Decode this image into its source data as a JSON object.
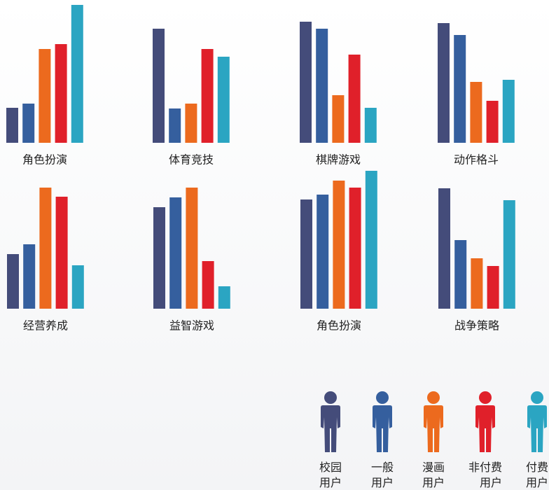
{
  "legend": [
    {
      "name": "校园用户",
      "color": "#444c7a"
    },
    {
      "name": "一般用户",
      "color": "#355f9e"
    },
    {
      "name": "漫画用户",
      "color": "#ec6a1e"
    },
    {
      "name": "非付费用户",
      "color": "#e0202a"
    },
    {
      "name": "付费用户",
      "color": "#2ba5c2"
    }
  ],
  "chart_data": [
    {
      "type": "bar",
      "title": "角色扮演",
      "values": [
        50,
        56,
        134,
        141,
        197
      ]
    },
    {
      "type": "bar",
      "title": "体育竞技",
      "values": [
        163,
        49,
        56,
        134,
        123
      ]
    },
    {
      "type": "bar",
      "title": "棋牌游戏",
      "values": [
        173,
        163,
        68,
        126,
        50
      ]
    },
    {
      "type": "bar",
      "title": "动作格斗",
      "values": [
        171,
        154,
        87,
        60,
        90
      ]
    },
    {
      "type": "bar",
      "title": "经营养成",
      "values": [
        78,
        92,
        173,
        160,
        62
      ]
    },
    {
      "type": "bar",
      "title": "益智游戏",
      "values": [
        145,
        159,
        173,
        68,
        32
      ]
    },
    {
      "type": "bar",
      "title": "角色扮演",
      "values": [
        156,
        163,
        183,
        173,
        197
      ]
    },
    {
      "type": "bar",
      "title": "战争策略",
      "values": [
        172,
        98,
        72,
        61,
        155
      ]
    }
  ]
}
